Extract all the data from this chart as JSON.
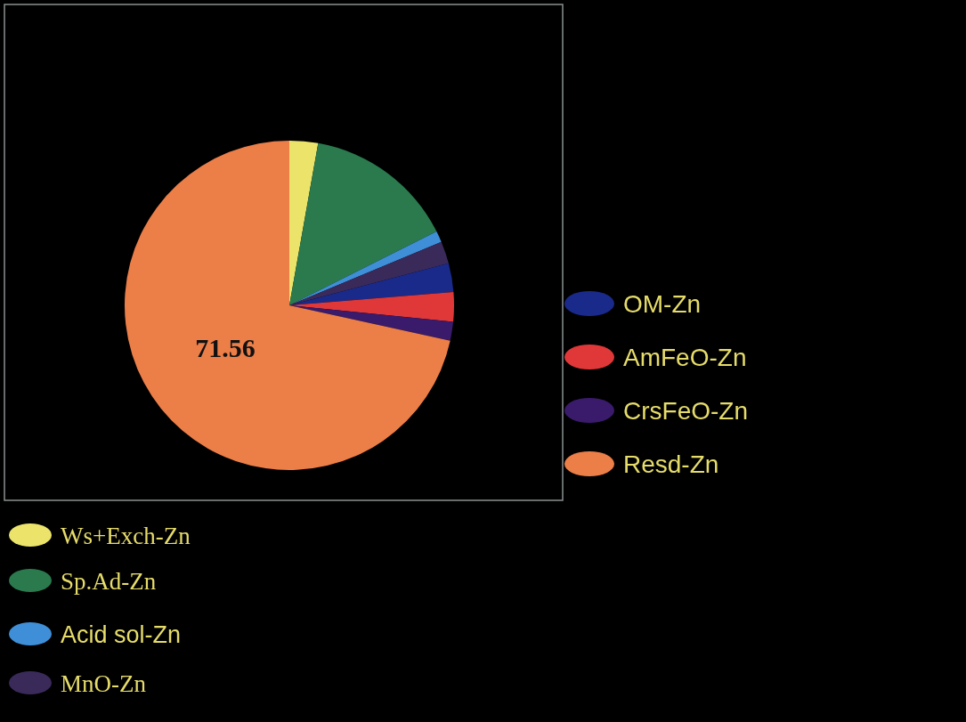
{
  "chart_data": {
    "type": "pie",
    "categories": [
      "Ws+Exch-Zn",
      "Sp.Ad-Zn",
      "Acid sol-Zn",
      "MnO-Zn",
      "OM-Zn",
      "AmFeO-Zn",
      "CrsFeO-Zn",
      "Resd-Zn"
    ],
    "values": [
      2.8,
      14.8,
      1.1,
      2.2,
      2.8,
      2.9,
      1.84,
      71.56
    ],
    "colors": [
      "#ece46a",
      "#2a7a4e",
      "#3f8fd8",
      "#3a2a5a",
      "#1a2a8a",
      "#e03838",
      "#3a1a6a",
      "#ec7e48"
    ],
    "value_labels": [
      null,
      null,
      null,
      null,
      null,
      null,
      null,
      "71.56"
    ],
    "legend": "right"
  }
}
